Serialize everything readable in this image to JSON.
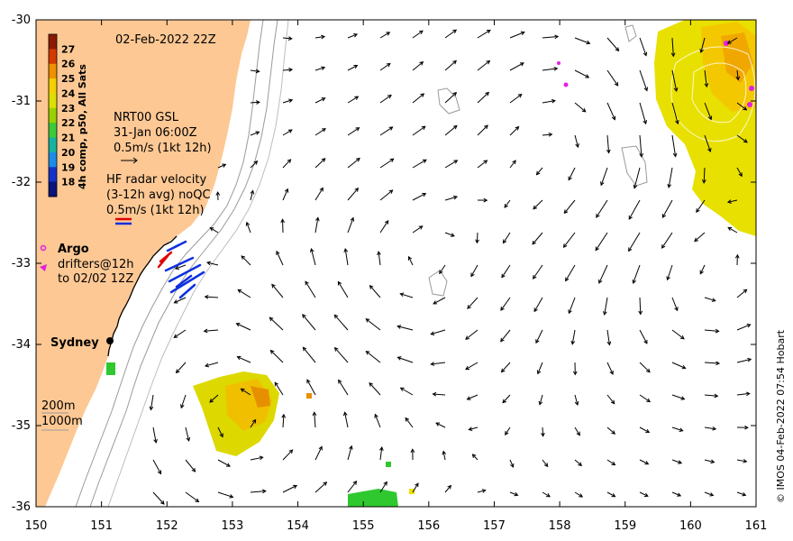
{
  "title": "02-Feb-2022 22Z",
  "credit": "© IMOS 04-Feb-2022 07:54 Hobart",
  "colorbar": {
    "label": "4h comp, p50, All Sats",
    "ticks": [
      "27",
      "26",
      "25",
      "24",
      "23",
      "22",
      "21",
      "20",
      "19",
      "18"
    ],
    "colors": [
      "#8b1a00",
      "#d43a00",
      "#f09000",
      "#f4d000",
      "#dce000",
      "#9ad200",
      "#3cc93c",
      "#14b4a0",
      "#1c8ce6",
      "#1432c8",
      "#0a147a"
    ]
  },
  "legend": {
    "nrt_1": "NRT00 GSL",
    "nrt_2": "31-Jan 06:00Z",
    "nrt_3": "0.5m/s (1kt 12h)",
    "hf_1": "HF radar velocity",
    "hf_2": "(3-12h avg) noQC",
    "hf_3": "0.5m/s (1kt 12h)",
    "argo": "Argo",
    "drifters_1": "drifters@12h",
    "drifters_2": "to 02/02 12Z",
    "depth_200": "200m",
    "depth_1000": "1000m"
  },
  "places": {
    "sydney": "Sydney"
  },
  "axes": {
    "x_ticks": [
      "150",
      "151",
      "152",
      "153",
      "154",
      "155",
      "156",
      "157",
      "158",
      "159",
      "160",
      "161"
    ],
    "y_ticks": [
      "-30",
      "-31",
      "-32",
      "-33",
      "-34",
      "-35",
      "-36"
    ]
  },
  "colors": {
    "land": "#fdc894",
    "arrow": "#000000",
    "hf_red": "#e00000",
    "hf_blue": "#1030e0",
    "argo": "#e020e0",
    "isobath": "#9a9a9a"
  }
}
